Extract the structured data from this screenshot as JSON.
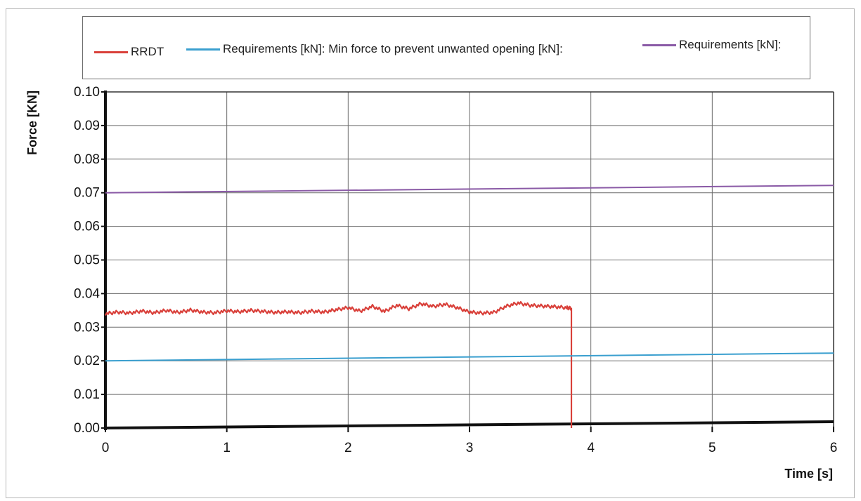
{
  "chart_data": {
    "type": "line",
    "xlabel": "Time [s]",
    "ylabel": "Force [KN]",
    "xlim": [
      0,
      6
    ],
    "ylim": [
      0,
      0.1
    ],
    "xticks": [
      "0",
      "1",
      "2",
      "3",
      "4",
      "5",
      "6"
    ],
    "yticks": [
      "0.00",
      "0.01",
      "0.02",
      "0.03",
      "0.04",
      "0.05",
      "0.06",
      "0.07",
      "0.08",
      "0.09",
      "0.10"
    ],
    "grid": true,
    "legend_position": "top",
    "series": [
      {
        "name": "RRDT",
        "color": "#d9403a",
        "x": [
          0,
          0.1,
          0.2,
          0.3,
          0.4,
          0.5,
          0.6,
          0.7,
          0.8,
          0.9,
          1.0,
          1.1,
          1.2,
          1.3,
          1.4,
          1.5,
          1.6,
          1.7,
          1.8,
          1.9,
          2.0,
          2.1,
          2.2,
          2.3,
          2.4,
          2.5,
          2.6,
          2.7,
          2.8,
          2.9,
          3.0,
          3.1,
          3.2,
          3.3,
          3.4,
          3.5,
          3.6,
          3.7,
          3.8,
          3.84,
          3.84
        ],
        "y": [
          0.034,
          0.0345,
          0.0342,
          0.0348,
          0.0343,
          0.035,
          0.0344,
          0.0351,
          0.0345,
          0.0343,
          0.0349,
          0.0346,
          0.035,
          0.0347,
          0.0344,
          0.0346,
          0.0343,
          0.0348,
          0.0345,
          0.0352,
          0.0358,
          0.0348,
          0.0362,
          0.0347,
          0.0365,
          0.0355,
          0.037,
          0.0362,
          0.0368,
          0.0358,
          0.0345,
          0.0342,
          0.0344,
          0.0362,
          0.0372,
          0.0365,
          0.0363,
          0.0361,
          0.0358,
          0.0356,
          0.0
        ]
      },
      {
        "name": "Requirements [kN]: Min force to prevent unwanted opening [kN]:",
        "color": "#3a9fcf",
        "x": [
          0,
          6
        ],
        "y": [
          0.02,
          0.0223
        ]
      },
      {
        "name": "Requirements [kN]:",
        "color": "#8a5aa6",
        "x": [
          0,
          6
        ],
        "y": [
          0.07,
          0.0722
        ]
      }
    ]
  }
}
